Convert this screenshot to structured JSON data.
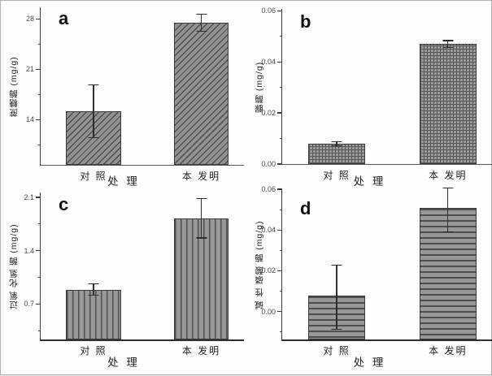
{
  "figure": {
    "background": "#fdfdfd",
    "border_color": "#b0b0b0",
    "axis_color": "#3c3c3c",
    "bar_base_color": "#939393",
    "bar_pattern_color": "#4e4e4e"
  },
  "chart_data": [
    {
      "type": "bar",
      "panel_letter": "a",
      "ylabel": "蔗糖酶 (mg/g)",
      "xlabel": "处 理",
      "categories": [
        "对 照",
        "本 发明"
      ],
      "values": [
        15.1,
        27.4
      ],
      "error_low": [
        11.4,
        26.2
      ],
      "error_high": [
        18.9,
        28.7
      ],
      "ytick_labels": [
        "14",
        "21",
        "28"
      ],
      "ytick_values": [
        14,
        21,
        28
      ],
      "ylim": [
        7.7,
        29.6
      ],
      "grid": false,
      "legend": "none",
      "pattern": "diagonal-hatch"
    },
    {
      "type": "bar",
      "panel_letter": "b",
      "ylabel": "脲酶 (mg/g)",
      "xlabel": "处 理",
      "categories": [
        "对 照",
        "本 发明"
      ],
      "values": [
        0.008,
        0.047
      ],
      "error_low": [
        0.007,
        0.0455
      ],
      "error_high": [
        0.009,
        0.0485
      ],
      "ytick_labels": [
        "0.00",
        "0.02",
        "0.04",
        "0.06"
      ],
      "ytick_values": [
        0,
        0.02,
        0.04,
        0.06
      ],
      "ylim": [
        0,
        0.0607
      ],
      "grid": false,
      "legend": "none",
      "pattern": "grid"
    },
    {
      "type": "bar",
      "panel_letter": "c",
      "ylabel": "过氧 化氢 酶 (mg/g)",
      "xlabel": "处 理",
      "categories": [
        "对 照",
        "本 发明"
      ],
      "values": [
        0.89,
        1.82
      ],
      "error_low": [
        0.81,
        1.56
      ],
      "error_high": [
        0.97,
        2.09
      ],
      "ytick_labels": [
        "0.7",
        "1.4",
        "2.1"
      ],
      "ytick_values": [
        0.7,
        1.4,
        2.1
      ],
      "ylim": [
        0.236,
        2.163
      ],
      "grid": false,
      "legend": "none",
      "pattern": "vertical-lines"
    },
    {
      "type": "bar",
      "panel_letter": "d",
      "ylabel": "碱 性 磷酸 酶 (mg/g)",
      "xlabel": "处 理",
      "categories": [
        "对 照",
        "本 发明"
      ],
      "values": [
        0.008,
        0.051
      ],
      "error_low": [
        -0.009,
        0.039
      ],
      "error_high": [
        0.023,
        0.061
      ],
      "ytick_labels": [
        "0.00",
        "0.02",
        "0.04",
        "0.06"
      ],
      "ytick_values": [
        0,
        0.02,
        0.04,
        0.06
      ],
      "ylim": [
        -0.0137,
        0.06
      ],
      "grid": false,
      "legend": "none",
      "pattern": "horizontal-lines"
    }
  ]
}
